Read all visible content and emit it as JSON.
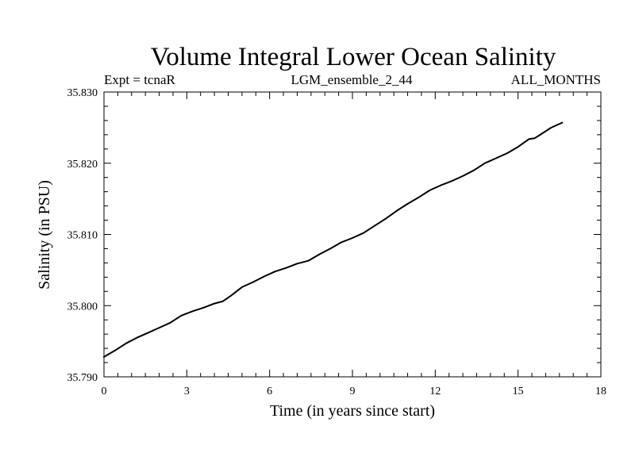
{
  "chart_data": {
    "type": "line",
    "title": "Volume Integral Lower Ocean Salinity",
    "subtitle_left": "Expt = tcnaR",
    "subtitle_center": "LGM_ensemble_2_44",
    "subtitle_right": "ALL_MONTHS",
    "xlabel": "Time (in years since start)",
    "ylabel": "Salinity (in PSU)",
    "xlim": [
      0,
      18
    ],
    "ylim": [
      35.79,
      35.83
    ],
    "xticks": [
      0,
      3,
      6,
      9,
      12,
      15,
      18
    ],
    "xtick_labels": [
      "0",
      "3",
      "6",
      "9",
      "12",
      "15",
      "18"
    ],
    "yticks": [
      35.79,
      35.8,
      35.81,
      35.82,
      35.83
    ],
    "ytick_labels": [
      "35.790",
      "35.800",
      "35.810",
      "35.820",
      "35.830"
    ],
    "x_minor_step": 0.5,
    "y_minor_step": 0.002,
    "series": [
      {
        "name": "salinity",
        "color": "#000000",
        "x": [
          0,
          0.4,
          0.8,
          1.2,
          1.6,
          2.0,
          2.4,
          2.8,
          3.2,
          3.6,
          4.0,
          4.3,
          4.6,
          5.0,
          5.4,
          5.8,
          6.2,
          6.6,
          7.0,
          7.4,
          7.8,
          8.2,
          8.6,
          9.0,
          9.4,
          9.8,
          10.2,
          10.6,
          11.0,
          11.4,
          11.8,
          12.2,
          12.6,
          13.0,
          13.4,
          13.8,
          14.2,
          14.6,
          15.0,
          15.4,
          15.6,
          15.8,
          16.2,
          16.6
        ],
        "y": [
          35.7928,
          35.7937,
          35.7947,
          35.7955,
          35.7962,
          35.7969,
          35.7976,
          35.7986,
          35.7992,
          35.7997,
          35.8003,
          35.8006,
          35.8014,
          35.8026,
          35.8033,
          35.8041,
          35.8048,
          35.8053,
          35.8059,
          35.8063,
          35.8072,
          35.808,
          35.8089,
          35.8095,
          35.8102,
          35.8112,
          35.8122,
          35.8133,
          35.8143,
          35.8152,
          35.8162,
          35.8169,
          35.8175,
          35.8182,
          35.819,
          35.82,
          35.8207,
          35.8214,
          35.8223,
          35.8234,
          35.8235,
          35.824,
          35.825,
          35.8257
        ]
      }
    ]
  }
}
